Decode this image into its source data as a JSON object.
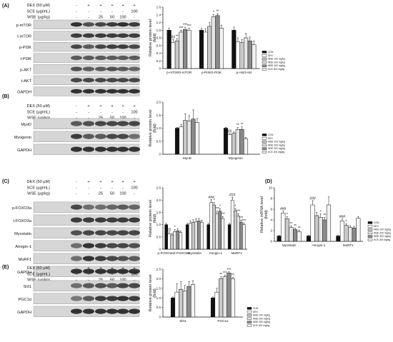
{
  "colors": {
    "CON": "#111111",
    "DEX": "#ffffff",
    "WSE100": "#c9c9c9",
    "WSE200": "#e6e6e6",
    "WSE300": "#8a8a8a",
    "SCE200": "#f3f3f3"
  },
  "legend": [
    "CON",
    "DEX",
    "WSE 100 mg/kg",
    "WSE 200 mg/kg",
    "WSE 300 mg/kg",
    "SCE 200 mg/kg"
  ],
  "treatment_rows": {
    "dex_label": "DEX (50 μM)",
    "sce_label": "SCE (μg/mL)",
    "wse_label": "WSE (μg/kg)",
    "dex": [
      "-",
      "+",
      "+",
      "+",
      "+",
      "+"
    ],
    "sce": [
      "-",
      "-",
      "-",
      "-",
      "-",
      "100"
    ],
    "wse": [
      "-",
      "-",
      "25",
      "50",
      "100",
      "-"
    ]
  },
  "panels": [
    {
      "id": "A",
      "label": "(A)",
      "blots": [
        "p-mTOR",
        "t-mTOR",
        "p-PI3K",
        "t-PI3K",
        "p-AKT",
        "t-AKT",
        "GAPDH"
      ],
      "chart_data": {
        "type": "bar",
        "ylabel": "Relative protein level\n(fold)",
        "ylim": [
          0,
          1.6
        ],
        "yticks": [
          "0",
          "0.2",
          "0.4",
          "0.6",
          "0.8",
          "1.0",
          "1.2",
          "1.4",
          "1.6"
        ],
        "categories": [
          "p-mTOR/t-mTOR",
          "p-PI3K/t-PI3K",
          "p-Akt/t-Akt"
        ],
        "series": [
          {
            "name": "CON",
            "values": [
              1.0,
              1.0,
              1.0
            ]
          },
          {
            "name": "DEX",
            "values": [
              0.68,
              0.95,
              0.7
            ]
          },
          {
            "name": "WSE 100 mg/kg",
            "values": [
              0.72,
              1.1,
              0.68
            ]
          },
          {
            "name": "WSE 200 mg/kg",
            "values": [
              0.95,
              1.35,
              0.8
            ]
          },
          {
            "name": "WSE 300 mg/kg",
            "values": [
              1.02,
              1.38,
              0.72
            ]
          },
          {
            "name": "SCE 200 mg/kg",
            "values": [
              1.0,
              1.05,
              0.62
            ]
          }
        ],
        "errors": [
          [
            0.05,
            0.05,
            0.08
          ],
          [
            0.08,
            0.08,
            0.1
          ],
          [
            0.06,
            0.1,
            0.08
          ],
          [
            0.05,
            0.06,
            0.12
          ],
          [
            0.06,
            0.05,
            0.1
          ],
          [
            0.05,
            0.08,
            0.1
          ]
        ],
        "sig": [
          [
            "",
            "",
            ""
          ],
          [
            "##",
            "",
            ""
          ],
          [
            "**",
            "",
            ""
          ],
          [
            "***",
            "*",
            ""
          ],
          [
            "***",
            "**",
            ""
          ],
          [
            "***",
            "",
            ""
          ]
        ]
      }
    },
    {
      "id": "B",
      "label": "(B)",
      "blots": [
        "MyoD",
        "Myogenin",
        "GAPDH"
      ],
      "chart_data": {
        "type": "bar",
        "ylabel": "Relative protein level\n(fold)",
        "ylim": [
          0,
          2.0
        ],
        "yticks": [
          "0",
          "0.5",
          "1.0",
          "1.5",
          "2.0"
        ],
        "categories": [
          "MyoD",
          "Myogenin"
        ],
        "series": [
          {
            "name": "CON",
            "values": [
              1.0,
              1.0
            ]
          },
          {
            "name": "DEX",
            "values": [
              1.05,
              0.75
            ]
          },
          {
            "name": "WSE 100 mg/kg",
            "values": [
              1.3,
              0.8
            ]
          },
          {
            "name": "WSE 200 mg/kg",
            "values": [
              1.28,
              0.95
            ]
          },
          {
            "name": "WSE 300 mg/kg",
            "values": [
              1.35,
              0.95
            ]
          },
          {
            "name": "SCE 200 mg/kg",
            "values": [
              1.22,
              0.6
            ]
          }
        ],
        "errors": [
          [
            0.03,
            0.03
          ],
          [
            0.1,
            0.05
          ],
          [
            0.25,
            0.05
          ],
          [
            0.2,
            0.08
          ],
          [
            0.35,
            0.1
          ],
          [
            0.15,
            0.05
          ]
        ],
        "sig": [
          [
            "",
            ""
          ],
          [
            "",
            "##"
          ],
          [
            "",
            ""
          ],
          [
            "",
            "**"
          ],
          [
            "",
            "**"
          ],
          [
            "",
            ""
          ]
        ]
      }
    },
    {
      "id": "C",
      "label": "(C)",
      "blots": [
        "p-FOXO3a",
        "t-FOXO3a",
        "Myostatin",
        "Atrogin-1",
        "MuRF1",
        "GAPDH"
      ],
      "chart_data": {
        "type": "bar",
        "ylabel": "Relative protein level\n(fold)",
        "ylim": [
          0,
          2.5
        ],
        "yticks": [
          "0",
          "0.5",
          "1.0",
          "1.5",
          "2.0",
          "2.5"
        ],
        "categories": [
          "p-FOXO3a/t-FOXO3a",
          "Myostatin",
          "Atrogin-1",
          "MuRF1"
        ],
        "series": [
          {
            "name": "CON",
            "values": [
              1.0,
              1.0,
              1.0,
              1.0
            ]
          },
          {
            "name": "DEX",
            "values": [
              0.62,
              1.05,
              1.9,
              2.0
            ]
          },
          {
            "name": "WSE 100 mg/kg",
            "values": [
              0.58,
              1.1,
              1.8,
              1.55
            ]
          },
          {
            "name": "WSE 200 mg/kg",
            "values": [
              0.72,
              1.12,
              1.45,
              1.35
            ]
          },
          {
            "name": "WSE 300 mg/kg",
            "values": [
              0.75,
              1.15,
              1.55,
              1.1
            ]
          },
          {
            "name": "SCE 200 mg/kg",
            "values": [
              0.68,
              1.1,
              1.25,
              1.0
            ]
          }
        ],
        "errors": [
          [
            0.05,
            0.05,
            0.05,
            0.05
          ],
          [
            0.08,
            0.1,
            0.12,
            0.12
          ],
          [
            0.06,
            0.1,
            0.1,
            0.1
          ],
          [
            0.08,
            0.12,
            0.1,
            0.1
          ],
          [
            0.08,
            0.1,
            0.1,
            0.08
          ],
          [
            0.06,
            0.08,
            0.08,
            0.06
          ]
        ],
        "sig": [
          [
            "",
            "",
            "",
            ""
          ],
          [
            "##",
            "",
            "###",
            "###"
          ],
          [
            "",
            "",
            "*",
            "*"
          ],
          [
            "*",
            "",
            "***",
            "***"
          ],
          [
            "",
            "",
            "*",
            "***"
          ],
          [
            "",
            "",
            "***",
            "***"
          ]
        ]
      }
    },
    {
      "id": "D",
      "label": "(D)",
      "chart_data": {
        "type": "bar",
        "ylabel": "Relative mRNA level\n(fold)",
        "ylim": [
          0,
          10
        ],
        "yticks": [
          "0",
          "2",
          "4",
          "6",
          "8",
          "10"
        ],
        "categories": [
          "Myostatin",
          "Atrogin-1",
          "MuRF1"
        ],
        "series": [
          {
            "name": "CON",
            "values": [
              1.0,
              1.0,
              1.0
            ]
          },
          {
            "name": "DEX",
            "values": [
              5.3,
              6.8,
              3.8
            ]
          },
          {
            "name": "WSE 100 mg/kg",
            "values": [
              4.2,
              4.8,
              3.0
            ]
          },
          {
            "name": "WSE 200 mg/kg",
            "values": [
              2.6,
              4.5,
              2.6
            ]
          },
          {
            "name": "WSE 300 mg/kg",
            "values": [
              2.2,
              4.0,
              2.5
            ]
          },
          {
            "name": "SCE 200 mg/kg",
            "values": [
              1.8,
              6.8,
              4.3
            ]
          }
        ],
        "errors": [
          [
            0.1,
            0.1,
            0.1
          ],
          [
            0.4,
            0.8,
            0.4
          ],
          [
            0.4,
            0.6,
            0.3
          ],
          [
            0.3,
            0.6,
            0.3
          ],
          [
            0.3,
            0.5,
            0.3
          ],
          [
            0.3,
            1.5,
            0.3
          ]
        ],
        "sig": [
          [
            "",
            "",
            ""
          ],
          [
            "###",
            "###",
            "###"
          ],
          [
            "*",
            "",
            "*"
          ],
          [
            "**",
            "*",
            ""
          ],
          [
            "**",
            "**",
            ""
          ],
          [
            "**",
            "",
            ""
          ]
        ]
      }
    },
    {
      "id": "E",
      "label": "(E)",
      "blots": [
        "Sirt1",
        "PGC1α",
        "GAPDH"
      ],
      "chart_data": {
        "type": "bar",
        "ylabel": "Relative protein level\n(fold)",
        "ylim": [
          0,
          2.5
        ],
        "yticks": [
          "0",
          "0.5",
          "1.0",
          "1.5",
          "2.0",
          "2.5"
        ],
        "categories": [
          "Sirt1",
          "PGC1α"
        ],
        "series": [
          {
            "name": "CON",
            "values": [
              1.0,
              1.0
            ]
          },
          {
            "name": "DEX",
            "values": [
              1.3,
              1.3
            ]
          },
          {
            "name": "WSE 100 mg/kg",
            "values": [
              1.45,
              2.0
            ]
          },
          {
            "name": "WSE 200 mg/kg",
            "values": [
              1.35,
              2.1
            ]
          },
          {
            "name": "WSE 300 mg/kg",
            "values": [
              1.6,
              2.3
            ]
          },
          {
            "name": "SCE 200 mg/kg",
            "values": [
              1.7,
              2.0
            ]
          }
        ],
        "errors": [
          [
            0.05,
            0.05
          ],
          [
            0.45,
            0.2
          ],
          [
            0.4,
            0.1
          ],
          [
            0.3,
            0.08
          ],
          [
            0.25,
            0.06
          ],
          [
            0.2,
            0.08
          ]
        ],
        "sig": [
          [
            "",
            ""
          ],
          [
            "",
            ""
          ],
          [
            "",
            "**"
          ],
          [
            "",
            "***"
          ],
          [
            "",
            "***"
          ],
          [
            "",
            "**"
          ]
        ]
      }
    }
  ]
}
